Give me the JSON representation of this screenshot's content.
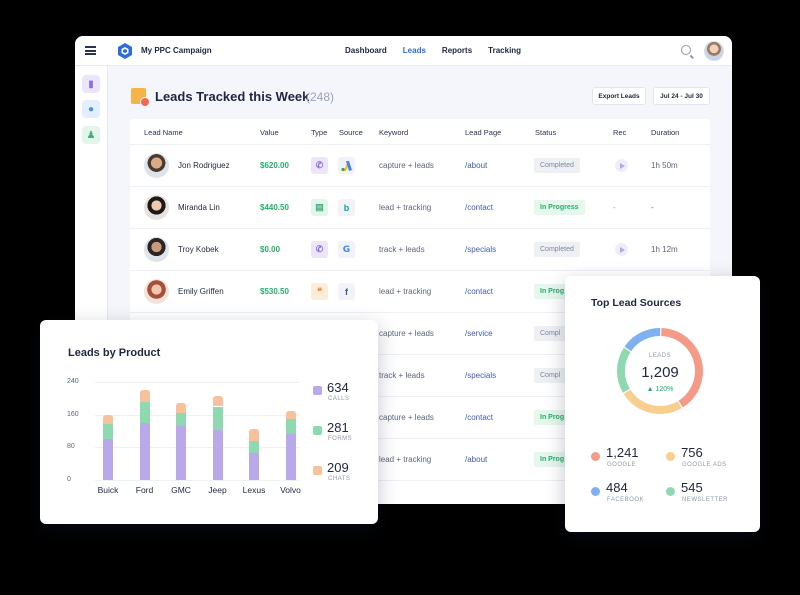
{
  "topbar": {
    "app_title": "My PPC Campaign",
    "nav": [
      "Dashboard",
      "Leads",
      "Reports",
      "Tracking"
    ],
    "active_nav": "Leads"
  },
  "page": {
    "title": "Leads Tracked this Week",
    "count": "(248)",
    "export_label": "Export Leads",
    "date_range": "Jul 24 - Jul 30"
  },
  "table": {
    "columns": [
      "Lead Name",
      "Value",
      "Type",
      "Source",
      "Keyword",
      "Lead Page",
      "Status",
      "Rec",
      "Duration"
    ],
    "rows": [
      {
        "name": "Jon Rodriguez",
        "value": "$620.00",
        "type_icon": "phone-call-icon",
        "source_icon": "google-ads-icon",
        "keyword": "capture + leads",
        "page": "/about",
        "status": "Completed",
        "rec": "play",
        "duration": "1h 50m"
      },
      {
        "name": "Miranda Lin",
        "value": "$440.50",
        "type_icon": "form-icon",
        "source_icon": "bing-icon",
        "keyword": "lead + tracking",
        "page": "/contact",
        "status": "In Progress",
        "rec": "-",
        "duration": "-"
      },
      {
        "name": "Troy Kobek",
        "value": "$0.00",
        "type_icon": "phone-call-icon",
        "source_icon": "google-icon",
        "keyword": "track + leads",
        "page": "/specials",
        "status": "Completed",
        "rec": "play",
        "duration": "1h 12m"
      },
      {
        "name": "Emily Griffen",
        "value": "$530.50",
        "type_icon": "chat-icon",
        "source_icon": "facebook-icon",
        "keyword": "lead + tracking",
        "page": "/contact",
        "status": "In Prog",
        "rec": "",
        "duration": ""
      },
      {
        "name": "",
        "value": "",
        "type_icon": "",
        "source_icon": "",
        "keyword": "capture + leads",
        "page": "/service",
        "status": "Compl",
        "rec": "",
        "duration": ""
      },
      {
        "name": "",
        "value": "",
        "type_icon": "",
        "source_icon": "",
        "keyword": "track + leads",
        "page": "/specials",
        "status": "Compl",
        "rec": "",
        "duration": ""
      },
      {
        "name": "",
        "value": "",
        "type_icon": "",
        "source_icon": "",
        "keyword": "capture + leads",
        "page": "/contact",
        "status": "In Prog",
        "rec": "",
        "duration": ""
      },
      {
        "name": "",
        "value": "",
        "type_icon": "",
        "source_icon": "",
        "keyword": "lead + tracking",
        "page": "/about",
        "status": "In Prog",
        "rec": "",
        "duration": ""
      }
    ]
  },
  "colors": {
    "calls": "#b9a9ea",
    "forms": "#8fd9b0",
    "chats": "#f6c19c",
    "google": "#f49a86",
    "google_ads": "#f8cf8f",
    "facebook": "#7fb1f0",
    "newsletter": "#8fd9b0"
  },
  "product_card": {
    "title": "Leads by Product",
    "legend": [
      {
        "value": "634",
        "label": "CALLS"
      },
      {
        "value": "281",
        "label": "FORMS"
      },
      {
        "value": "209",
        "label": "CHATS"
      }
    ]
  },
  "chart_data": [
    {
      "type": "bar",
      "stacked": true,
      "title": "Leads by Product",
      "categories": [
        "Buick",
        "Ford",
        "GMC",
        "Jeep",
        "Lexus",
        "Volvo"
      ],
      "yticks": [
        0,
        80,
        160,
        240
      ],
      "ylim": [
        0,
        240
      ],
      "series": [
        {
          "name": "CALLS",
          "values": [
            100,
            140,
            132,
            122,
            65,
            112
          ]
        },
        {
          "name": "FORMS",
          "values": [
            38,
            50,
            32,
            58,
            30,
            38
          ]
        },
        {
          "name": "CHATS",
          "values": [
            22,
            30,
            25,
            25,
            30,
            20
          ]
        }
      ]
    },
    {
      "type": "pie",
      "donut": true,
      "title": "Top Lead Sources",
      "center_label": "LEADS",
      "center_value": "1,209",
      "center_change": "▲ 120%",
      "series": [
        {
          "name": "GOOGLE",
          "value": 1241
        },
        {
          "name": "GOOGLE ADS",
          "value": 756
        },
        {
          "name": "NEWSLETTER",
          "value": 545
        },
        {
          "name": "FACEBOOK",
          "value": 484
        }
      ]
    }
  ],
  "sources_card": {
    "title": "Top Lead Sources",
    "items": [
      {
        "value": "1,241",
        "label": "GOOGLE"
      },
      {
        "value": "756",
        "label": "GOOGLE ADS"
      },
      {
        "value": "484",
        "label": "FACEBOOK"
      },
      {
        "value": "545",
        "label": "NEWSLETTER"
      }
    ]
  }
}
